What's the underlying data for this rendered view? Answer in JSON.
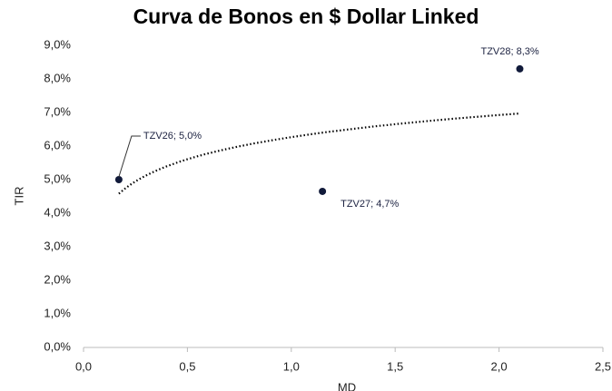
{
  "chart_data": {
    "type": "scatter",
    "title": "Curva de Bonos en $ Dollar Linked",
    "x_label": "MD",
    "y_label": "TIR",
    "series": [
      {
        "color": "#111a3a",
        "x": [
          0.17,
          1.15,
          2.1
        ],
        "values": [
          5.0,
          4.65,
          8.3
        ],
        "value_labels": [
          "TZV26; 5,0%",
          "TZV27; 4,7%",
          "TZV28; 8,3%"
        ]
      }
    ],
    "trendline": "logarithmic",
    "xlim": [
      0,
      2.5
    ],
    "xticks": [
      {
        "value": 0,
        "label": "0,0"
      },
      {
        "value": 0.5,
        "label": "0,5"
      },
      {
        "value": 1,
        "label": "1,0"
      },
      {
        "value": 1.5,
        "label": "1,5"
      },
      {
        "value": 2,
        "label": "2,0"
      },
      {
        "value": 2.5,
        "label": "2,5"
      }
    ],
    "ylim": [
      0,
      9
    ],
    "yticks": [
      {
        "value": 0,
        "label": "0,0%"
      },
      {
        "value": 1,
        "label": "1,0%"
      },
      {
        "value": 2,
        "label": "2,0%"
      },
      {
        "value": 3,
        "label": "3,0%"
      },
      {
        "value": 4,
        "label": "4,0%"
      },
      {
        "value": 5,
        "label": "5,0%"
      },
      {
        "value": 6,
        "label": "6,0%"
      },
      {
        "value": 7,
        "label": "7,0%"
      },
      {
        "value": 8,
        "label": "8,0%"
      },
      {
        "value": 9,
        "label": "9,0%"
      }
    ],
    "grid": false
  }
}
